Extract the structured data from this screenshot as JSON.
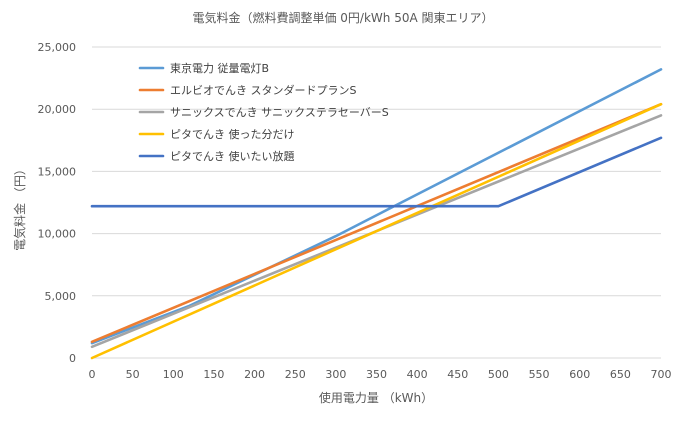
{
  "chart_data": {
    "type": "line",
    "title": "電気料金（燃料費調整単価 0円/kWh 50A 関東エリア）",
    "xlabel": "使用電力量 （kWh）",
    "ylabel": "電気料金 （円）",
    "xlim": [
      0,
      700
    ],
    "ylim": [
      0,
      25000
    ],
    "x_ticks": [
      0,
      50,
      100,
      150,
      200,
      250,
      300,
      350,
      400,
      450,
      500,
      550,
      600,
      650,
      700
    ],
    "y_ticks": [
      0,
      5000,
      10000,
      15000,
      20000,
      25000
    ],
    "y_tick_labels": [
      "0",
      "5,000",
      "10,000",
      "15,000",
      "20,000",
      "25,000"
    ],
    "grid": "horizontal",
    "legend_position": "top-left",
    "series": [
      {
        "name": "東京電力 従量電灯B",
        "color": "#5B9BD5",
        "x": [
          0,
          120,
          300,
          700
        ],
        "y": [
          1200,
          4200,
          9800,
          23200
        ]
      },
      {
        "name": "エルビオでんき スタンダードプランS",
        "color": "#ED7D31",
        "x": [
          0,
          700
        ],
        "y": [
          1300,
          20400
        ]
      },
      {
        "name": "サニックスでんき サニックステラセーバーS",
        "color": "#A5A5A5",
        "x": [
          0,
          700
        ],
        "y": [
          900,
          19500
        ]
      },
      {
        "name": "ピタでんき 使った分だけ",
        "color": "#FFC000",
        "x": [
          0,
          700
        ],
        "y": [
          0,
          20400
        ]
      },
      {
        "name": "ピタでんき 使いたい放題",
        "color": "#4472C4",
        "x": [
          0,
          500,
          700
        ],
        "y": [
          12200,
          12200,
          17700
        ]
      }
    ]
  }
}
